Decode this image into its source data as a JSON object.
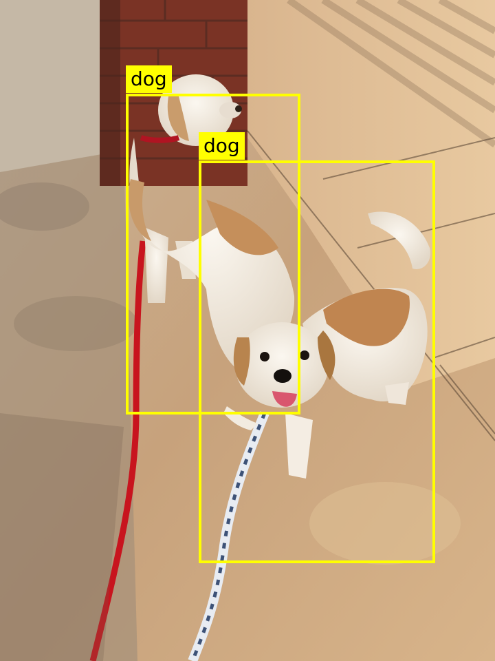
{
  "detections": [
    {
      "label": "dog"
    },
    {
      "label": "dog"
    }
  ],
  "colors": {
    "box": "#ffff00",
    "label_text": "#000000"
  }
}
